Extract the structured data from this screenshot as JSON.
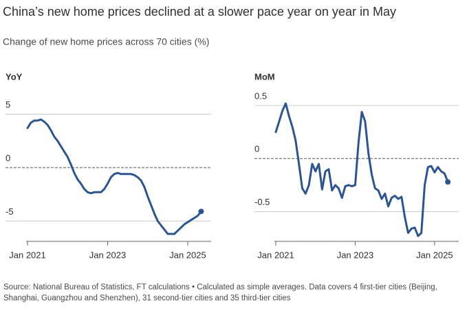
{
  "title": "China’s new home prices declined at a slower pace year on year in May",
  "subtitle": "Change of new home prices across 70 cities (%)",
  "source": "Source: National Bureau of Statistics, FT calculations • Calculated as simple averages. Data covers 4 first-tier cities (Beijing, Shanghai, Guangzhou and Shenzhen), 31 second-tier cities and 35 third-tier cities",
  "chart_data": [
    {
      "type": "line",
      "title": "YoY",
      "color": "#2b5592",
      "end_marker": true,
      "grid": true,
      "categories": [
        "Jan 2021",
        null,
        null,
        null,
        null,
        null,
        null,
        null,
        null,
        null,
        null,
        null,
        null,
        null,
        null,
        null,
        null,
        null,
        null,
        null,
        null,
        null,
        null,
        null,
        "Jan 2023",
        null,
        null,
        null,
        null,
        null,
        null,
        null,
        null,
        null,
        null,
        null,
        null,
        null,
        null,
        null,
        null,
        null,
        null,
        null,
        null,
        null,
        null,
        null,
        "Jan 2025",
        null,
        null,
        null,
        null
      ],
      "values": [
        3.7,
        4.2,
        4.4,
        4.4,
        4.5,
        4.3,
        4.0,
        3.5,
        2.9,
        2.5,
        2.0,
        1.5,
        1.0,
        0.3,
        -0.5,
        -1.1,
        -1.5,
        -2.0,
        -2.3,
        -2.4,
        -2.3,
        -2.3,
        -2.3,
        -2.0,
        -1.5,
        -0.9,
        -0.6,
        -0.5,
        -0.6,
        -0.6,
        -0.6,
        -0.6,
        -0.7,
        -0.9,
        -1.2,
        -1.8,
        -2.7,
        -3.5,
        -4.3,
        -5.0,
        -5.4,
        -5.8,
        -6.2,
        -6.2,
        -6.2,
        -5.9,
        -5.6,
        -5.3,
        -5.1,
        -4.9,
        -4.7,
        -4.5,
        -4.1
      ],
      "ylim": [
        -6.9,
        6.7
      ],
      "yticks": [
        -5,
        0,
        5
      ]
    },
    {
      "type": "line",
      "title": "MoM",
      "color": "#2b5592",
      "end_marker": true,
      "grid": true,
      "categories": [
        "Jan 2021",
        null,
        null,
        null,
        null,
        null,
        null,
        null,
        null,
        null,
        null,
        null,
        null,
        null,
        null,
        null,
        null,
        null,
        null,
        null,
        null,
        null,
        null,
        null,
        "Jan 2023",
        null,
        null,
        null,
        null,
        null,
        null,
        null,
        null,
        null,
        null,
        null,
        null,
        null,
        null,
        null,
        null,
        null,
        null,
        null,
        null,
        null,
        null,
        null,
        "Jan 2025",
        null,
        null,
        null,
        null
      ],
      "values": [
        0.25,
        0.35,
        0.45,
        0.52,
        0.4,
        0.3,
        0.17,
        -0.05,
        -0.28,
        -0.33,
        -0.25,
        -0.05,
        -0.12,
        -0.05,
        -0.29,
        -0.12,
        -0.1,
        -0.3,
        -0.25,
        -0.28,
        -0.37,
        -0.26,
        -0.25,
        -0.26,
        -0.25,
        0.15,
        0.44,
        0.35,
        0.05,
        -0.15,
        -0.28,
        -0.3,
        -0.38,
        -0.33,
        -0.45,
        -0.37,
        -0.35,
        -0.38,
        -0.36,
        -0.55,
        -0.7,
        -0.66,
        -0.65,
        -0.73,
        -0.7,
        -0.25,
        -0.08,
        -0.07,
        -0.13,
        -0.08,
        -0.12,
        -0.14,
        -0.22
      ],
      "ylim": [
        -0.78,
        0.59
      ],
      "yticks": [
        -0.5,
        0,
        0.5
      ]
    }
  ]
}
